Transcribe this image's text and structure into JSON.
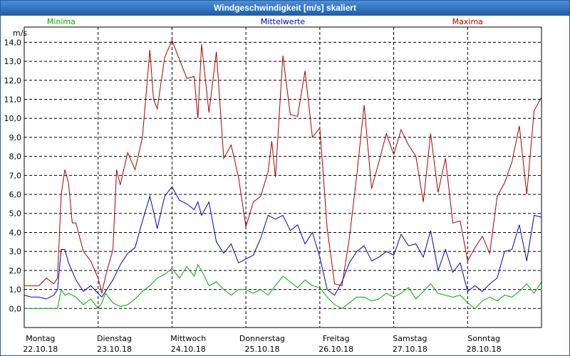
{
  "window": {
    "title": "Windgeschwindigkeit [m/s] skaliert"
  },
  "chart_data": {
    "type": "line",
    "title": "Windgeschwindigkeit [m/s] skaliert",
    "ylabel": "m/s",
    "ylim": [
      -1.0,
      14.8
    ],
    "yticks": [
      0,
      1,
      2,
      3,
      4,
      5,
      6,
      7,
      8,
      9,
      10,
      11,
      12,
      13,
      14
    ],
    "ytick_labels": [
      "0,0",
      "1,0",
      "2,0",
      "3,0",
      "4,0",
      "5,0",
      "6,0",
      "7,0",
      "8,0",
      "9,0",
      "10,0",
      "11,0",
      "12,0",
      "13,0",
      "14,0"
    ],
    "xlim": [
      0,
      7
    ],
    "days": [
      {
        "name": "Montag",
        "date": "22.10.18"
      },
      {
        "name": "Dienstag",
        "date": "23.10.18"
      },
      {
        "name": "Mittwoch",
        "date": "24.10.18"
      },
      {
        "name": "Donnerstag",
        "date": "25.10.18"
      },
      {
        "name": "Freitag",
        "date": "26.10.18"
      },
      {
        "name": "Samstag",
        "date": "27.10.18"
      },
      {
        "name": "Sonntag",
        "date": "28.10.18"
      }
    ],
    "grid": true,
    "legend_position": "top",
    "series": [
      {
        "name": "Minima",
        "color": "#00aa00",
        "x": [
          0,
          0.1,
          0.3,
          0.45,
          0.5,
          0.55,
          0.6,
          0.7,
          0.8,
          0.9,
          1.0,
          1.05,
          1.1,
          1.2,
          1.3,
          1.4,
          1.5,
          1.6,
          1.7,
          1.8,
          1.9,
          2.0,
          2.1,
          2.2,
          2.3,
          2.35,
          2.4,
          2.5,
          2.6,
          2.7,
          2.8,
          2.9,
          3.0,
          3.1,
          3.2,
          3.3,
          3.4,
          3.5,
          3.6,
          3.7,
          3.8,
          3.9,
          4.0,
          4.1,
          4.2,
          4.3,
          4.4,
          4.5,
          4.6,
          4.7,
          4.8,
          4.9,
          5.0,
          5.1,
          5.2,
          5.3,
          5.4,
          5.5,
          5.6,
          5.7,
          5.8,
          5.9,
          6.0,
          6.1,
          6.2,
          6.3,
          6.4,
          6.5,
          6.6,
          6.7,
          6.8,
          6.9,
          7.0
        ],
        "values": [
          0.0,
          0.0,
          0.0,
          0.0,
          1.0,
          0.7,
          0.8,
          0.6,
          0.2,
          0.5,
          0.0,
          0.3,
          0.8,
          0.3,
          0.1,
          0.2,
          0.5,
          0.9,
          1.2,
          1.6,
          1.8,
          2.1,
          1.6,
          2.2,
          1.7,
          2.3,
          2.0,
          1.2,
          1.4,
          1.0,
          0.7,
          1.0,
          1.0,
          0.8,
          1.0,
          0.7,
          1.2,
          1.7,
          1.4,
          1.1,
          1.5,
          1.2,
          1.1,
          0.6,
          0.2,
          0.0,
          0.3,
          0.6,
          0.6,
          0.4,
          0.5,
          0.8,
          0.6,
          0.8,
          1.1,
          0.5,
          0.9,
          1.3,
          0.8,
          0.7,
          0.6,
          0.7,
          0.3,
          0.0,
          0.4,
          0.6,
          0.4,
          0.7,
          0.6,
          0.9,
          1.3,
          0.8,
          1.4
        ]
      },
      {
        "name": "Mittelwerte",
        "color": "#0000c0",
        "x": [
          0,
          0.1,
          0.2,
          0.3,
          0.4,
          0.45,
          0.5,
          0.55,
          0.6,
          0.7,
          0.8,
          0.9,
          1.0,
          1.05,
          1.1,
          1.2,
          1.3,
          1.4,
          1.5,
          1.6,
          1.7,
          1.75,
          1.8,
          1.9,
          2.0,
          2.1,
          2.2,
          2.3,
          2.35,
          2.4,
          2.5,
          2.6,
          2.7,
          2.8,
          2.9,
          3.0,
          3.1,
          3.2,
          3.3,
          3.4,
          3.5,
          3.6,
          3.7,
          3.8,
          3.9,
          4.0,
          4.1,
          4.2,
          4.3,
          4.4,
          4.5,
          4.6,
          4.7,
          4.8,
          4.9,
          5.0,
          5.1,
          5.2,
          5.3,
          5.4,
          5.5,
          5.6,
          5.7,
          5.8,
          5.9,
          6.0,
          6.1,
          6.2,
          6.3,
          6.4,
          6.5,
          6.6,
          6.7,
          6.8,
          6.9,
          7.0
        ],
        "values": [
          0.7,
          0.6,
          0.6,
          0.5,
          0.7,
          1.0,
          3.1,
          3.1,
          2.4,
          1.5,
          0.9,
          1.2,
          0.8,
          0.6,
          0.9,
          1.5,
          2.3,
          2.9,
          3.2,
          4.6,
          5.9,
          5.1,
          4.2,
          5.9,
          6.4,
          5.7,
          5.5,
          5.2,
          5.6,
          4.9,
          5.6,
          3.5,
          2.9,
          3.4,
          2.4,
          2.6,
          2.8,
          3.7,
          4.9,
          4.7,
          4.9,
          4.1,
          4.4,
          3.4,
          4.0,
          2.7,
          1.0,
          0.7,
          1.4,
          2.4,
          3.0,
          3.3,
          2.5,
          2.7,
          3.0,
          2.8,
          3.9,
          3.3,
          3.4,
          2.7,
          4.1,
          2.0,
          3.1,
          1.9,
          2.4,
          0.9,
          1.2,
          0.9,
          1.3,
          1.6,
          3.0,
          3.1,
          4.4,
          2.5,
          4.9,
          4.8
        ]
      },
      {
        "name": "Maxima",
        "color": "#aa0000",
        "x": [
          0,
          0.1,
          0.2,
          0.3,
          0.4,
          0.45,
          0.5,
          0.55,
          0.6,
          0.65,
          0.7,
          0.8,
          0.9,
          1.0,
          1.05,
          1.1,
          1.2,
          1.25,
          1.3,
          1.4,
          1.5,
          1.6,
          1.7,
          1.75,
          1.8,
          1.9,
          2.0,
          2.1,
          2.2,
          2.3,
          2.35,
          2.4,
          2.5,
          2.6,
          2.7,
          2.8,
          2.9,
          3.0,
          3.1,
          3.2,
          3.3,
          3.35,
          3.4,
          3.5,
          3.6,
          3.7,
          3.8,
          3.9,
          4.0,
          4.1,
          4.2,
          4.3,
          4.4,
          4.5,
          4.6,
          4.7,
          4.8,
          4.9,
          5.0,
          5.1,
          5.2,
          5.3,
          5.4,
          5.5,
          5.6,
          5.7,
          5.8,
          5.9,
          6.0,
          6.1,
          6.2,
          6.3,
          6.4,
          6.5,
          6.6,
          6.7,
          6.8,
          6.9,
          7.0
        ],
        "values": [
          1.2,
          1.2,
          1.2,
          1.6,
          1.3,
          1.6,
          6.0,
          7.3,
          6.6,
          4.5,
          4.5,
          3.0,
          2.5,
          1.6,
          0.8,
          1.7,
          3.1,
          7.3,
          6.5,
          8.2,
          7.3,
          9.0,
          13.6,
          11.0,
          10.5,
          13.2,
          14.1,
          13.1,
          12.1,
          12.2,
          10.0,
          13.9,
          10.3,
          13.5,
          7.9,
          8.6,
          6.9,
          4.3,
          5.6,
          5.9,
          7.2,
          8.8,
          6.9,
          13.3,
          10.2,
          10.1,
          12.5,
          9.0,
          9.5,
          4.2,
          1.3,
          1.2,
          3.7,
          7.0,
          10.7,
          6.3,
          7.7,
          9.2,
          8.1,
          9.4,
          8.6,
          8.0,
          5.6,
          9.2,
          6.1,
          7.9,
          4.5,
          4.6,
          2.5,
          3.2,
          3.8,
          2.9,
          5.9,
          6.6,
          7.7,
          9.6,
          6.0,
          10.4,
          11.1
        ]
      }
    ]
  }
}
